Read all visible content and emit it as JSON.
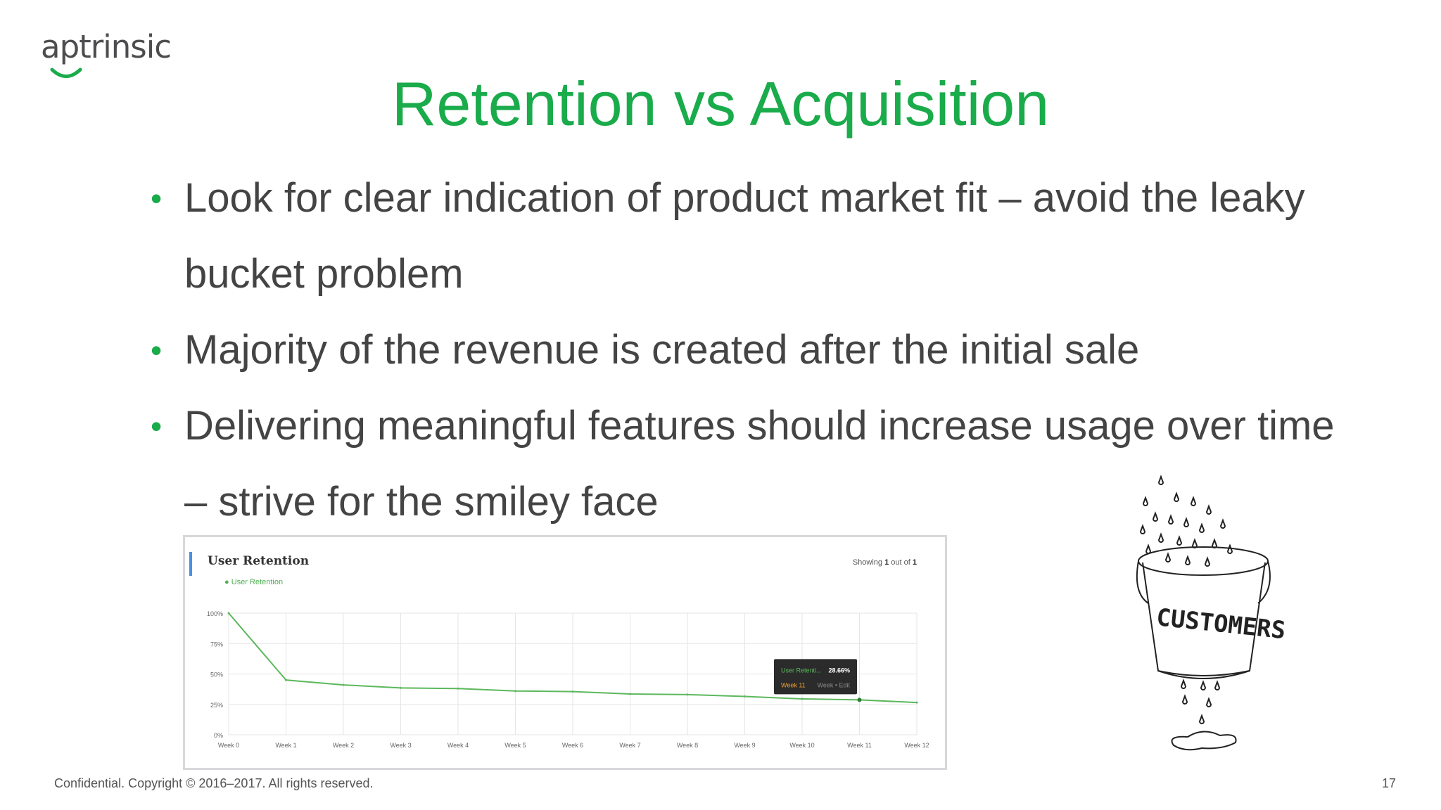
{
  "logo": {
    "text": "aptrinsic"
  },
  "slide": {
    "title": "Retention vs Acquisition",
    "bullets": [
      "Look for clear indication of product market fit – avoid the leaky bucket problem",
      "Majority of the revenue is created after the initial sale",
      "Delivering meaningful features should increase usage over time – strive for the smiley face"
    ],
    "bullet_char": "•"
  },
  "chart_panel": {
    "title": "User Retention",
    "legend": "User Retention",
    "showing_prefix": "Showing",
    "showing_current": "1",
    "showing_middle": "out of",
    "showing_total": "1",
    "tooltip": {
      "series": "User Retenti...",
      "value": "28.66%",
      "week": "Week 11",
      "extra": "Week • Edit"
    }
  },
  "chart_data": {
    "type": "line",
    "title": "User Retention",
    "categories": [
      "Week 0",
      "Week 1",
      "Week 2",
      "Week 3",
      "Week 4",
      "Week 5",
      "Week 6",
      "Week 7",
      "Week 8",
      "Week 9",
      "Week 10",
      "Week 11",
      "Week 12"
    ],
    "series": [
      {
        "name": "User Retention",
        "values": [
          100,
          45,
          41,
          38.5,
          38,
          36,
          35.5,
          33.5,
          33,
          31.5,
          29.5,
          28.66,
          26.5
        ]
      }
    ],
    "y_ticks": [
      "100%",
      "75%",
      "50%",
      "25%",
      "0%"
    ],
    "ylim": [
      0,
      100
    ],
    "grid": true,
    "legend_position": "top-left",
    "colors": {
      "line": "#5cb85c",
      "grid": "#e6e6e6"
    }
  },
  "illustration": {
    "label": "CUSTOMERS"
  },
  "footer": {
    "text": "Confidential. Copyright © 2016–2017. All rights reserved.",
    "page": "17"
  },
  "colors": {
    "accent": "#1aab4b",
    "text": "#444444"
  }
}
